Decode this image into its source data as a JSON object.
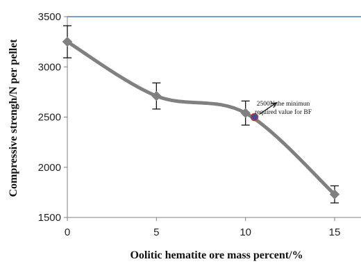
{
  "chart_data": {
    "type": "line",
    "xlabel": "Oolitic hematite ore mass percent/%",
    "ylabel": "Compressive strengh/N per pellet",
    "xlim": [
      0,
      15
    ],
    "ylim": [
      1500,
      3500
    ],
    "x_ticks": [
      "0",
      "5",
      "10",
      "15"
    ],
    "y_ticks": [
      "1500",
      "2000",
      "2500",
      "3000",
      "3500"
    ],
    "grid": false,
    "series": [
      {
        "x": [
          0,
          5,
          10,
          15
        ],
        "y": [
          3250,
          2710,
          2540,
          1730
        ],
        "error": [
          160,
          130,
          120,
          85
        ],
        "color": "#808080"
      }
    ],
    "reference_line": {
      "y": 3500,
      "color": "#4a7ebb"
    },
    "highlight_point": {
      "x": 10.5,
      "y": 2500,
      "fill": "#3b4fa0",
      "stroke": "#c0392b"
    },
    "annotation": {
      "line1": "2500N,the minimun",
      "line2": "required value for BF"
    }
  }
}
